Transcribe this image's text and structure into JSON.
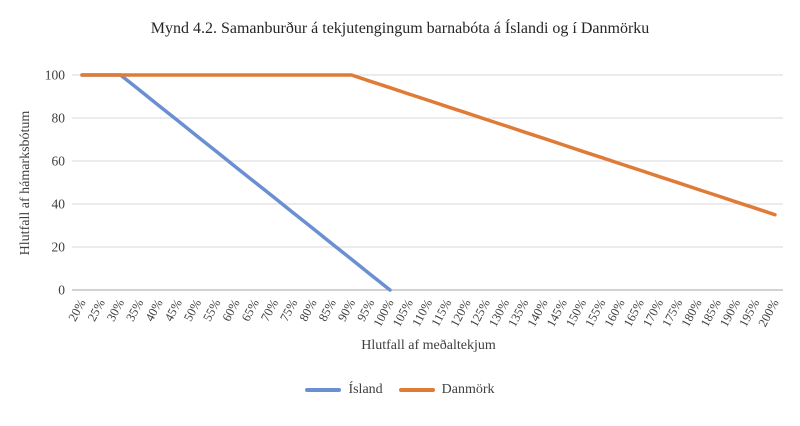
{
  "chart_data": {
    "type": "line",
    "title": "Mynd 4.2. Samanburður á tekjutengingum barnabóta á Íslandi og í Danmörku",
    "xlabel": "Hlutfall af meðaltekjum",
    "ylabel": "Hlutfall af hámarksbótum",
    "ylim": [
      0,
      100
    ],
    "ytick_interval": 20,
    "grid": "horizontal",
    "legend_position": "bottom-center",
    "categories": [
      "20%",
      "25%",
      "30%",
      "35%",
      "40%",
      "45%",
      "50%",
      "55%",
      "60%",
      "65%",
      "70%",
      "75%",
      "80%",
      "85%",
      "90%",
      "95%",
      "100%",
      "105%",
      "110%",
      "115%",
      "120%",
      "125%",
      "130%",
      "135%",
      "140%",
      "145%",
      "150%",
      "155%",
      "160%",
      "165%",
      "170%",
      "175%",
      "180%",
      "185%",
      "190%",
      "195%",
      "200%"
    ],
    "series": [
      {
        "name": "Ísland",
        "color": "#6A90D3",
        "values": [
          100,
          100,
          100,
          92.9,
          85.7,
          78.6,
          71.4,
          64.3,
          57.1,
          50,
          42.9,
          35.7,
          28.6,
          21.4,
          14.3,
          7.1,
          0,
          null,
          null,
          null,
          null,
          null,
          null,
          null,
          null,
          null,
          null,
          null,
          null,
          null,
          null,
          null,
          null,
          null,
          null,
          null,
          null
        ]
      },
      {
        "name": "Danmörk",
        "color": "#DF7B36",
        "values": [
          100,
          100,
          100,
          100,
          100,
          100,
          100,
          100,
          100,
          100,
          100,
          100,
          100,
          100,
          100,
          97,
          94.1,
          91.1,
          88.2,
          85.2,
          82.3,
          79.3,
          76.4,
          73.4,
          70.5,
          67.5,
          64.5,
          61.6,
          58.6,
          55.7,
          52.7,
          49.8,
          46.8,
          43.9,
          40.9,
          38,
          35
        ]
      }
    ],
    "style": {
      "grid_color": "#D9D9D9",
      "axis_color": "#A6A6A6",
      "tick_text_color": "#3F3F3F",
      "line_width": 3.5
    }
  }
}
